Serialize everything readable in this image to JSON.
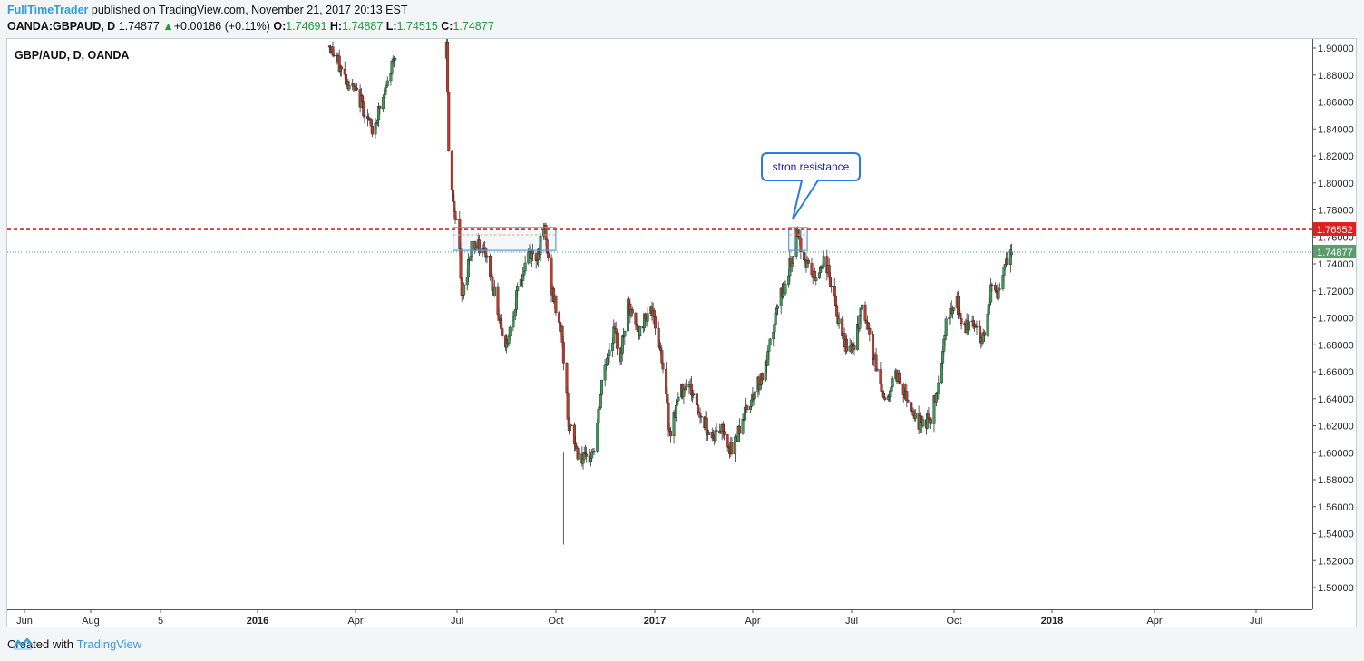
{
  "header": {
    "author": "FullTimeTrader",
    "published_text": "published on TradingView.com, November 21, 2017 20:13 EST",
    "symbol_line": "OANDA:GBPAUD, D",
    "last": "1.74877",
    "change_arrow": "▲",
    "change": "+0.00186 (+0.11%)",
    "o_label": "O:",
    "o_value": "1.74691",
    "h_label": "H:",
    "h_value": "1.74887",
    "l_label": "L:",
    "l_value": "1.74515",
    "c_label": "C:",
    "c_value": "1.74877"
  },
  "footer": {
    "created_with": "Created with",
    "brand": "TradingView"
  },
  "colors": {
    "up": "#3d9a5a",
    "down": "#c0392b",
    "wick": "#333333",
    "resistance_line": "#e02020",
    "price_line": "#2e8b57",
    "price_label_bg": "#5a9e6e",
    "resistance_label_bg": "#e02020",
    "annotation_border": "#2a7be4",
    "annotation_text": "#1b1bb0",
    "zone_border": "#5b9bd5"
  },
  "chart_data": {
    "type": "candlestick",
    "title": "GBP/AUD, D, OANDA",
    "ylim": [
      1.49,
      1.91
    ],
    "y_ticks": [
      "1.90000",
      "1.88000",
      "1.86000",
      "1.84000",
      "1.82000",
      "1.80000",
      "1.78000",
      "1.76000",
      "1.74000",
      "1.72000",
      "1.70000",
      "1.68000",
      "1.66000",
      "1.64000",
      "1.62000",
      "1.60000",
      "1.58000",
      "1.56000",
      "1.54000",
      "1.52000",
      "1.50000"
    ],
    "x_ticks": [
      {
        "label": "Jun",
        "bold": false
      },
      {
        "label": "Aug",
        "bold": false
      },
      {
        "label": "5",
        "bold": false
      },
      {
        "label": "2016",
        "bold": true
      },
      {
        "label": "Apr",
        "bold": false
      },
      {
        "label": "Jul",
        "bold": false
      },
      {
        "label": "Oct",
        "bold": false
      },
      {
        "label": "2017",
        "bold": true
      },
      {
        "label": "Apr",
        "bold": false
      },
      {
        "label": "Jul",
        "bold": false
      },
      {
        "label": "Oct",
        "bold": false
      },
      {
        "label": "2018",
        "bold": true
      },
      {
        "label": "Apr",
        "bold": false
      },
      {
        "label": "Jul",
        "bold": false
      }
    ],
    "resistance_level": {
      "value": 1.76552,
      "label": "1.76552"
    },
    "last_price": {
      "value": 1.74877,
      "label": "1.74877"
    },
    "annotation": {
      "text": "stron resistance"
    },
    "resistance_zones": [
      {
        "start": "2016-06-28",
        "end": "2016-09-30",
        "low": 1.75,
        "high": 1.767
      },
      {
        "start": "2017-05-01",
        "end": "2017-05-18",
        "low": 1.75,
        "high": 1.767
      }
    ],
    "anchors": [
      {
        "date": "2016-03-05",
        "close": 1.905
      },
      {
        "date": "2016-03-20",
        "close": 1.88
      },
      {
        "date": "2016-04-05",
        "close": 1.86
      },
      {
        "date": "2016-04-15",
        "close": 1.838
      },
      {
        "date": "2016-04-28",
        "close": 1.87
      },
      {
        "date": "2016-05-08",
        "close": 1.905
      },
      {
        "date": "2016-06-22",
        "close": 1.905
      },
      {
        "date": "2016-06-24",
        "close": 1.82
      },
      {
        "date": "2016-06-28",
        "close": 1.785
      },
      {
        "date": "2016-07-03",
        "close": 1.765
      },
      {
        "date": "2016-07-06",
        "close": 1.712
      },
      {
        "date": "2016-07-15",
        "close": 1.755
      },
      {
        "date": "2016-07-28",
        "close": 1.748
      },
      {
        "date": "2016-08-05",
        "close": 1.718
      },
      {
        "date": "2016-08-15",
        "close": 1.678
      },
      {
        "date": "2016-08-25",
        "close": 1.715
      },
      {
        "date": "2016-09-05",
        "close": 1.748
      },
      {
        "date": "2016-09-12",
        "close": 1.745
      },
      {
        "date": "2016-09-20",
        "close": 1.765
      },
      {
        "date": "2016-09-25",
        "close": 1.725
      },
      {
        "date": "2016-10-05",
        "close": 1.69
      },
      {
        "date": "2016-10-12",
        "close": 1.62
      },
      {
        "date": "2016-10-20",
        "close": 1.6
      },
      {
        "date": "2016-10-28",
        "close": 1.592
      },
      {
        "date": "2016-11-05",
        "close": 1.605
      },
      {
        "date": "2016-11-12",
        "close": 1.658
      },
      {
        "date": "2016-11-22",
        "close": 1.69
      },
      {
        "date": "2016-11-28",
        "close": 1.672
      },
      {
        "date": "2016-12-05",
        "close": 1.708
      },
      {
        "date": "2016-12-15",
        "close": 1.688
      },
      {
        "date": "2016-12-25",
        "close": 1.71
      },
      {
        "date": "2017-01-05",
        "close": 1.672
      },
      {
        "date": "2017-01-12",
        "close": 1.615
      },
      {
        "date": "2017-01-20",
        "close": 1.64
      },
      {
        "date": "2017-01-28",
        "close": 1.655
      },
      {
        "date": "2017-02-08",
        "close": 1.63
      },
      {
        "date": "2017-02-20",
        "close": 1.612
      },
      {
        "date": "2017-03-02",
        "close": 1.618
      },
      {
        "date": "2017-03-10",
        "close": 1.6
      },
      {
        "date": "2017-03-18",
        "close": 1.622
      },
      {
        "date": "2017-03-30",
        "close": 1.645
      },
      {
        "date": "2017-04-10",
        "close": 1.662
      },
      {
        "date": "2017-04-20",
        "close": 1.705
      },
      {
        "date": "2017-05-01",
        "close": 1.735
      },
      {
        "date": "2017-05-08",
        "close": 1.76
      },
      {
        "date": "2017-05-15",
        "close": 1.745
      },
      {
        "date": "2017-05-25",
        "close": 1.728
      },
      {
        "date": "2017-06-03",
        "close": 1.745
      },
      {
        "date": "2017-06-10",
        "close": 1.72
      },
      {
        "date": "2017-06-18",
        "close": 1.685
      },
      {
        "date": "2017-06-28",
        "close": 1.675
      },
      {
        "date": "2017-07-08",
        "close": 1.708
      },
      {
        "date": "2017-07-18",
        "close": 1.67
      },
      {
        "date": "2017-07-28",
        "close": 1.638
      },
      {
        "date": "2017-08-08",
        "close": 1.658
      },
      {
        "date": "2017-08-18",
        "close": 1.64
      },
      {
        "date": "2017-08-28",
        "close": 1.622
      },
      {
        "date": "2017-09-08",
        "close": 1.625
      },
      {
        "date": "2017-09-15",
        "close": 1.652
      },
      {
        "date": "2017-09-22",
        "close": 1.698
      },
      {
        "date": "2017-10-02",
        "close": 1.71
      },
      {
        "date": "2017-10-08",
        "close": 1.688
      },
      {
        "date": "2017-10-15",
        "close": 1.7
      },
      {
        "date": "2017-10-25",
        "close": 1.682
      },
      {
        "date": "2017-11-02",
        "close": 1.722
      },
      {
        "date": "2017-11-10",
        "close": 1.718
      },
      {
        "date": "2017-11-16",
        "close": 1.74
      },
      {
        "date": "2017-11-21",
        "close": 1.74877
      }
    ]
  }
}
